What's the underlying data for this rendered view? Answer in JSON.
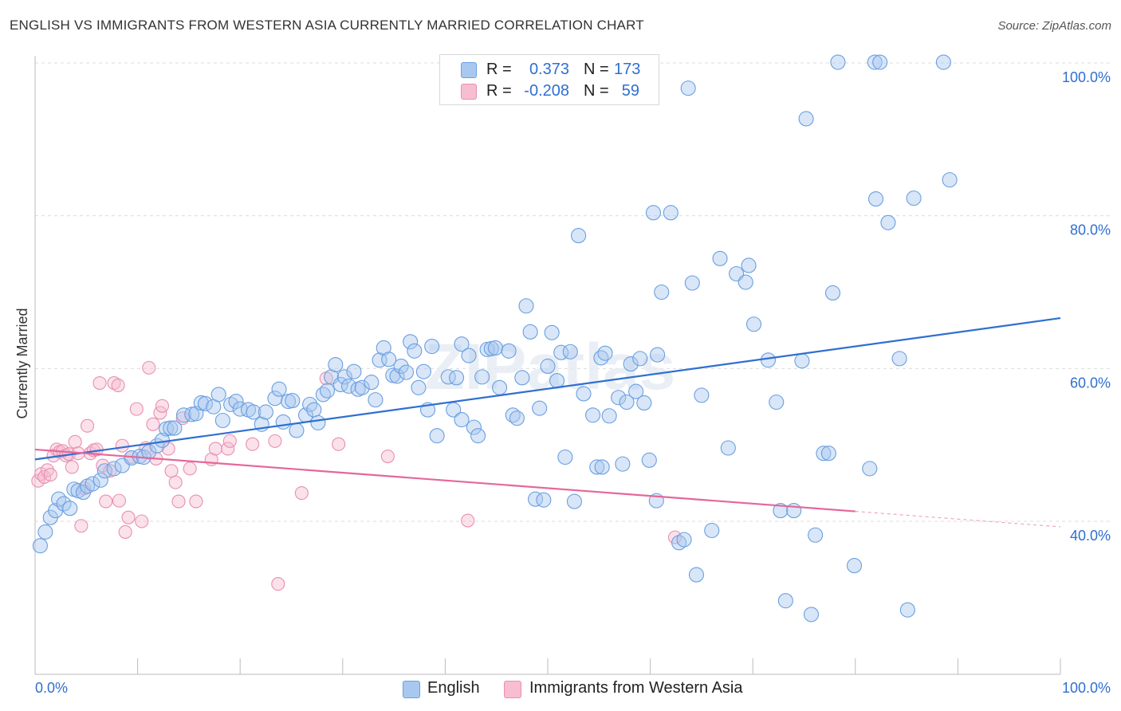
{
  "title": "ENGLISH VS IMMIGRANTS FROM WESTERN ASIA CURRENTLY MARRIED CORRELATION CHART",
  "source": "Source: ZipAtlas.com",
  "watermark": "ZIPatlas",
  "legend": {
    "rows": [
      {
        "r_label": "R =",
        "r_value": "0.373",
        "n_label": "N =",
        "n_value": "173",
        "color": "#a9c8f0",
        "border": "#6a9fe0"
      },
      {
        "r_label": "R =",
        "r_value": "-0.208",
        "n_label": "N =",
        "n_value": "59",
        "color": "#f7bdd0",
        "border": "#e890b0"
      }
    ]
  },
  "bottom_legend": {
    "english": "English",
    "immigrants": "Immigrants from Western Asia"
  },
  "chart_data": {
    "type": "scatter",
    "title": "ENGLISH VS IMMIGRANTS FROM WESTERN ASIA CURRENTLY MARRIED CORRELATION CHART",
    "xlabel": "",
    "ylabel": "Currently Married",
    "xlim": [
      0,
      100
    ],
    "ylim": [
      20,
      102
    ],
    "x_tick_labels": [
      "0.0%",
      "100.0%"
    ],
    "y_ticks": [
      40,
      60,
      80,
      100
    ],
    "y_tick_labels": [
      "40.0%",
      "60.0%",
      "80.0%",
      "100.0%"
    ],
    "grid": true,
    "legend_position": "top-center",
    "series": [
      {
        "name": "English",
        "color": "#6a9fe0",
        "fill": "#a9c8f0",
        "trend": {
          "x": [
            0,
            100
          ],
          "y": [
            48.1,
            66.6
          ]
        },
        "points": [
          [
            0.5,
            36.8
          ],
          [
            1,
            38.6
          ],
          [
            1.5,
            40.5
          ],
          [
            2,
            41.4
          ],
          [
            2.3,
            42.9
          ],
          [
            2.8,
            42.3
          ],
          [
            3.4,
            41.7
          ],
          [
            3.8,
            44.2
          ],
          [
            4.2,
            44
          ],
          [
            4.7,
            43.8
          ],
          [
            5.1,
            44.6
          ],
          [
            5.6,
            44.9
          ],
          [
            6.4,
            45.4
          ],
          [
            6.8,
            46.6
          ],
          [
            7.7,
            46.9
          ],
          [
            8.5,
            47.3
          ],
          [
            9.4,
            48.3
          ],
          [
            10.2,
            48.5
          ],
          [
            10.6,
            48.4
          ],
          [
            11.1,
            49.1
          ],
          [
            11.9,
            49.9
          ],
          [
            12.4,
            50.6
          ],
          [
            12.8,
            52.1
          ],
          [
            13.2,
            52.2
          ],
          [
            13.6,
            52.2
          ],
          [
            14.5,
            53.9
          ],
          [
            15.3,
            54
          ],
          [
            15.7,
            54.1
          ],
          [
            16.2,
            55.5
          ],
          [
            16.6,
            55.4
          ],
          [
            17.4,
            55
          ],
          [
            17.9,
            56.6
          ],
          [
            18.3,
            53.2
          ],
          [
            19.1,
            55.3
          ],
          [
            19.6,
            55.7
          ],
          [
            20,
            54.7
          ],
          [
            20.8,
            54.6
          ],
          [
            21.3,
            54.3
          ],
          [
            22.1,
            52.7
          ],
          [
            22.5,
            54.3
          ],
          [
            23.4,
            56.1
          ],
          [
            23.8,
            57.3
          ],
          [
            24.2,
            53
          ],
          [
            24.7,
            55.7
          ],
          [
            25.1,
            55.8
          ],
          [
            25.5,
            51.9
          ],
          [
            26.4,
            53.9
          ],
          [
            26.8,
            55.3
          ],
          [
            27.2,
            54.6
          ],
          [
            27.6,
            52.9
          ],
          [
            28.1,
            56.6
          ],
          [
            28.5,
            57.1
          ],
          [
            28.9,
            58.9
          ],
          [
            29.3,
            60.5
          ],
          [
            29.8,
            57.9
          ],
          [
            30.2,
            58.9
          ],
          [
            30.6,
            57.7
          ],
          [
            31.1,
            59.6
          ],
          [
            31.5,
            57.3
          ],
          [
            31.9,
            57.5
          ],
          [
            32.8,
            58.2
          ],
          [
            33.2,
            55.9
          ],
          [
            33.6,
            61.1
          ],
          [
            34,
            62.7
          ],
          [
            34.5,
            61.2
          ],
          [
            34.9,
            59.1
          ],
          [
            35.3,
            59
          ],
          [
            35.7,
            60.3
          ],
          [
            36.2,
            59.5
          ],
          [
            36.6,
            63.5
          ],
          [
            37,
            62.3
          ],
          [
            37.4,
            57.5
          ],
          [
            37.9,
            59.6
          ],
          [
            38.3,
            54.6
          ],
          [
            38.7,
            62.9
          ],
          [
            39.2,
            51.2
          ],
          [
            40.3,
            58.9
          ],
          [
            40.8,
            54.6
          ],
          [
            41.1,
            58.8
          ],
          [
            41.6,
            63.2
          ],
          [
            41.6,
            53.3
          ],
          [
            42.3,
            61.7
          ],
          [
            42.8,
            52.3
          ],
          [
            43.2,
            51.2
          ],
          [
            43.6,
            58.9
          ],
          [
            44.1,
            62.5
          ],
          [
            44.5,
            62.6
          ],
          [
            44.9,
            62.7
          ],
          [
            45.3,
            57.5
          ],
          [
            46.2,
            62.3
          ],
          [
            46.6,
            53.9
          ],
          [
            47,
            53.5
          ],
          [
            47.5,
            58.8
          ],
          [
            47.9,
            68.2
          ],
          [
            48.3,
            64.8
          ],
          [
            48.8,
            42.9
          ],
          [
            49.2,
            54.8
          ],
          [
            49.6,
            42.8
          ],
          [
            50,
            60.3
          ],
          [
            50.4,
            64.7
          ],
          [
            50.9,
            58.4
          ],
          [
            51.3,
            62.1
          ],
          [
            51.7,
            48.4
          ],
          [
            52.2,
            62.2
          ],
          [
            52.6,
            42.6
          ],
          [
            53,
            77.4
          ],
          [
            53.5,
            56.7
          ],
          [
            54.4,
            53.9
          ],
          [
            54.8,
            47.1
          ],
          [
            55.2,
            61.4
          ],
          [
            55.6,
            62
          ],
          [
            56,
            53.8
          ],
          [
            56.9,
            56.2
          ],
          [
            57.3,
            47.5
          ],
          [
            57.7,
            55.6
          ],
          [
            58.1,
            60.6
          ],
          [
            58.6,
            57
          ],
          [
            59,
            61.3
          ],
          [
            59.4,
            55.5
          ],
          [
            59.9,
            48
          ],
          [
            60.3,
            80.4
          ],
          [
            60.7,
            61.8
          ],
          [
            61.1,
            70
          ],
          [
            62,
            80.4
          ],
          [
            62.8,
            37.2
          ],
          [
            63.3,
            37.6
          ],
          [
            63.7,
            96.7
          ],
          [
            64.1,
            71.2
          ],
          [
            64.5,
            33
          ],
          [
            65,
            56.5
          ],
          [
            66,
            38.8
          ],
          [
            66.8,
            74.4
          ],
          [
            67.6,
            49.6
          ],
          [
            68.4,
            72.4
          ],
          [
            69.3,
            71.3
          ],
          [
            69.6,
            73.5
          ],
          [
            70.1,
            65.8
          ],
          [
            71.5,
            61.1
          ],
          [
            72.3,
            55.6
          ],
          [
            72.7,
            41.4
          ],
          [
            73.2,
            29.6
          ],
          [
            74,
            41.4
          ],
          [
            74.8,
            61
          ],
          [
            75.2,
            92.7
          ],
          [
            75.7,
            27.8
          ],
          [
            76.1,
            38.2
          ],
          [
            76.9,
            48.9
          ],
          [
            77.4,
            48.9
          ],
          [
            77.8,
            69.9
          ],
          [
            78.3,
            100.1
          ],
          [
            79.9,
            34.2
          ],
          [
            81.4,
            46.9
          ],
          [
            81.9,
            100.1
          ],
          [
            82,
            82.2
          ],
          [
            82.4,
            100.1
          ],
          [
            83.2,
            79.1
          ],
          [
            84.3,
            61.3
          ],
          [
            85.1,
            28.4
          ],
          [
            85.7,
            82.3
          ],
          [
            88.6,
            100.1
          ],
          [
            89.2,
            84.7
          ],
          [
            60.6,
            42.7
          ],
          [
            55.3,
            47.1
          ]
        ]
      },
      {
        "name": "Immigrants from Western Asia",
        "color": "#e890b0",
        "fill": "#f7bdd0",
        "trend": {
          "x": [
            0,
            80
          ],
          "y": [
            49.4,
            41.3
          ]
        },
        "points": [
          [
            0.3,
            45.3
          ],
          [
            0.6,
            46.2
          ],
          [
            0.9,
            45.8
          ],
          [
            1.2,
            46.7
          ],
          [
            1.5,
            46.1
          ],
          [
            1.8,
            48.6
          ],
          [
            2.1,
            49.4
          ],
          [
            2.4,
            49.1
          ],
          [
            2.7,
            49.2
          ],
          [
            3,
            48.6
          ],
          [
            3.3,
            48.8
          ],
          [
            3.6,
            47.1
          ],
          [
            3.9,
            50.4
          ],
          [
            4.2,
            48.9
          ],
          [
            4.5,
            39.4
          ],
          [
            4.8,
            44.3
          ],
          [
            5.1,
            52.5
          ],
          [
            5.4,
            48.9
          ],
          [
            5.7,
            49.3
          ],
          [
            6,
            49.4
          ],
          [
            6.3,
            58.1
          ],
          [
            6.6,
            47.3
          ],
          [
            6.9,
            42.6
          ],
          [
            7.3,
            46.6
          ],
          [
            7.7,
            58.1
          ],
          [
            8.1,
            57.8
          ],
          [
            8.5,
            49.9
          ],
          [
            8.8,
            38.6
          ],
          [
            9.1,
            40.5
          ],
          [
            9.4,
            48.4
          ],
          [
            9.9,
            54.7
          ],
          [
            10.4,
            40
          ],
          [
            10.8,
            49.6
          ],
          [
            11.1,
            60.1
          ],
          [
            11.5,
            52.7
          ],
          [
            11.8,
            48.2
          ],
          [
            12.2,
            54.2
          ],
          [
            12.4,
            55.1
          ],
          [
            13,
            49.5
          ],
          [
            13.3,
            46.6
          ],
          [
            13.7,
            45.1
          ],
          [
            14,
            42.6
          ],
          [
            14.4,
            53.5
          ],
          [
            15.1,
            46.9
          ],
          [
            15.7,
            42.6
          ],
          [
            17.2,
            48.1
          ],
          [
            17.6,
            49.5
          ],
          [
            18.8,
            49.5
          ],
          [
            19,
            50.5
          ],
          [
            21.2,
            50.1
          ],
          [
            23.4,
            50.5
          ],
          [
            23.7,
            31.8
          ],
          [
            26,
            43.7
          ],
          [
            28.4,
            58.7
          ],
          [
            29.6,
            50.1
          ],
          [
            34.4,
            48.5
          ],
          [
            42.2,
            40.1
          ],
          [
            62.4,
            37.9
          ],
          [
            8.2,
            42.7
          ]
        ]
      }
    ]
  }
}
